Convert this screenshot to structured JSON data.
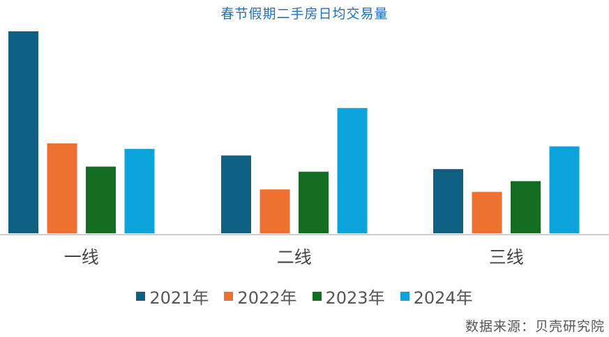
{
  "chart_data": {
    "type": "bar",
    "title": "春节假期二手房日均交易量",
    "categories": [
      "一线",
      "二线",
      "三线"
    ],
    "series": [
      {
        "name": "2021年",
        "color": "#0f5f82",
        "values": [
          100,
          38.5,
          31.8
        ]
      },
      {
        "name": "2022年",
        "color": "#ed7130",
        "values": [
          44.5,
          21.7,
          20.5
        ]
      },
      {
        "name": "2023年",
        "color": "#136d23",
        "values": [
          33,
          30.5,
          25.8
        ]
      },
      {
        "name": "2024年",
        "color": "#0aa3db",
        "values": [
          41.8,
          62,
          43
        ]
      }
    ],
    "ylim": [
      0,
      100
    ],
    "xlabel": "",
    "ylabel": "",
    "y_axis_visible": false,
    "grid": false,
    "legend_position": "bottom"
  },
  "source": "数据来源：贝壳研究院"
}
